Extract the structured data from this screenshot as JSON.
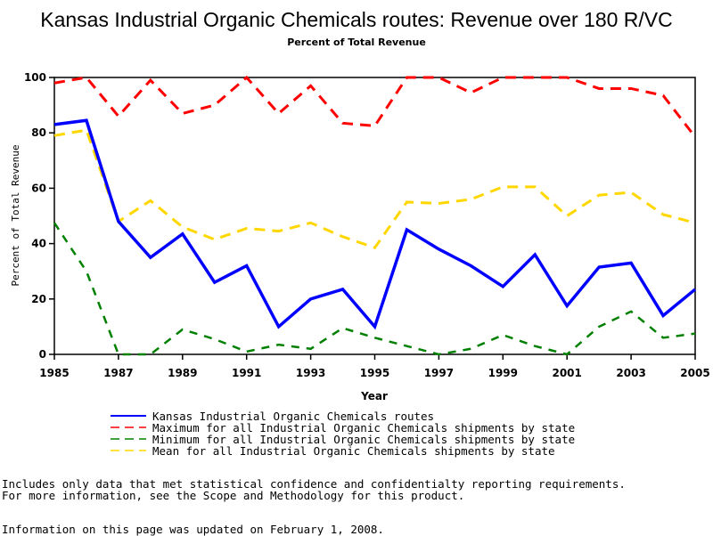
{
  "chart_data": {
    "type": "line",
    "title": "Kansas Industrial Organic Chemicals routes: Revenue over 180 R/VC",
    "subtitle": "Percent of Total Revenue",
    "xlabel": "Year",
    "ylabel": "Percent of Total Revenue",
    "xlim": [
      1985,
      2005
    ],
    "ylim": [
      0,
      100
    ],
    "xticks": [
      1985,
      1987,
      1989,
      1991,
      1993,
      1995,
      1997,
      1999,
      2001,
      2003,
      2005
    ],
    "yticks": [
      0,
      20,
      40,
      60,
      80,
      100
    ],
    "grid": false,
    "legend_position": "bottom",
    "x": [
      1985,
      1986,
      1987,
      1988,
      1989,
      1990,
      1991,
      1992,
      1993,
      1994,
      1995,
      1996,
      1997,
      1998,
      1999,
      2000,
      2001,
      2002,
      2003,
      2004,
      2005
    ],
    "series": [
      {
        "name": "Kansas Industrial Organic Chemicals routes",
        "color": "#0000ff",
        "style": "solid",
        "values": [
          83,
          84.5,
          48,
          35,
          43.5,
          26,
          32,
          10,
          20,
          23.5,
          10,
          45,
          38,
          32,
          24.5,
          36,
          17.5,
          31.5,
          33,
          14,
          23.5
        ]
      },
      {
        "name": "Maximum for all Industrial Organic Chemicals shipments by state",
        "color": "#ff0000",
        "style": "dashed",
        "values": [
          98,
          100,
          86,
          99,
          87,
          90,
          100,
          87,
          97,
          83.5,
          82.5,
          100,
          100,
          94.5,
          100,
          100,
          100,
          96,
          96,
          93.5,
          78.5
        ]
      },
      {
        "name": "Minimum for all Industrial Organic Chemicals shipments by state",
        "color": "#008000",
        "style": "dashed",
        "values": [
          47.5,
          30,
          0,
          0,
          9,
          5.5,
          1,
          3.5,
          2,
          9.5,
          6,
          3,
          0,
          2,
          7,
          3,
          0,
          10,
          15.5,
          6,
          7.5
        ]
      },
      {
        "name": "Mean for all Industrial Organic Chemicals shipments by state",
        "color": "#ffd700",
        "style": "dashed",
        "values": [
          79,
          81,
          48,
          55.5,
          46,
          41.5,
          45.5,
          44.5,
          47.5,
          42.5,
          38.5,
          55,
          54.5,
          56,
          60.5,
          60.5,
          50,
          57.5,
          58.5,
          50.5,
          47.5
        ]
      }
    ]
  },
  "notes": {
    "line1": "Includes only data that met statistical confidence and confidentialty reporting requirements.",
    "line2": "For more information, see the Scope and Methodology for this product.",
    "updated": "Information on this page was updated on February 1, 2008."
  }
}
